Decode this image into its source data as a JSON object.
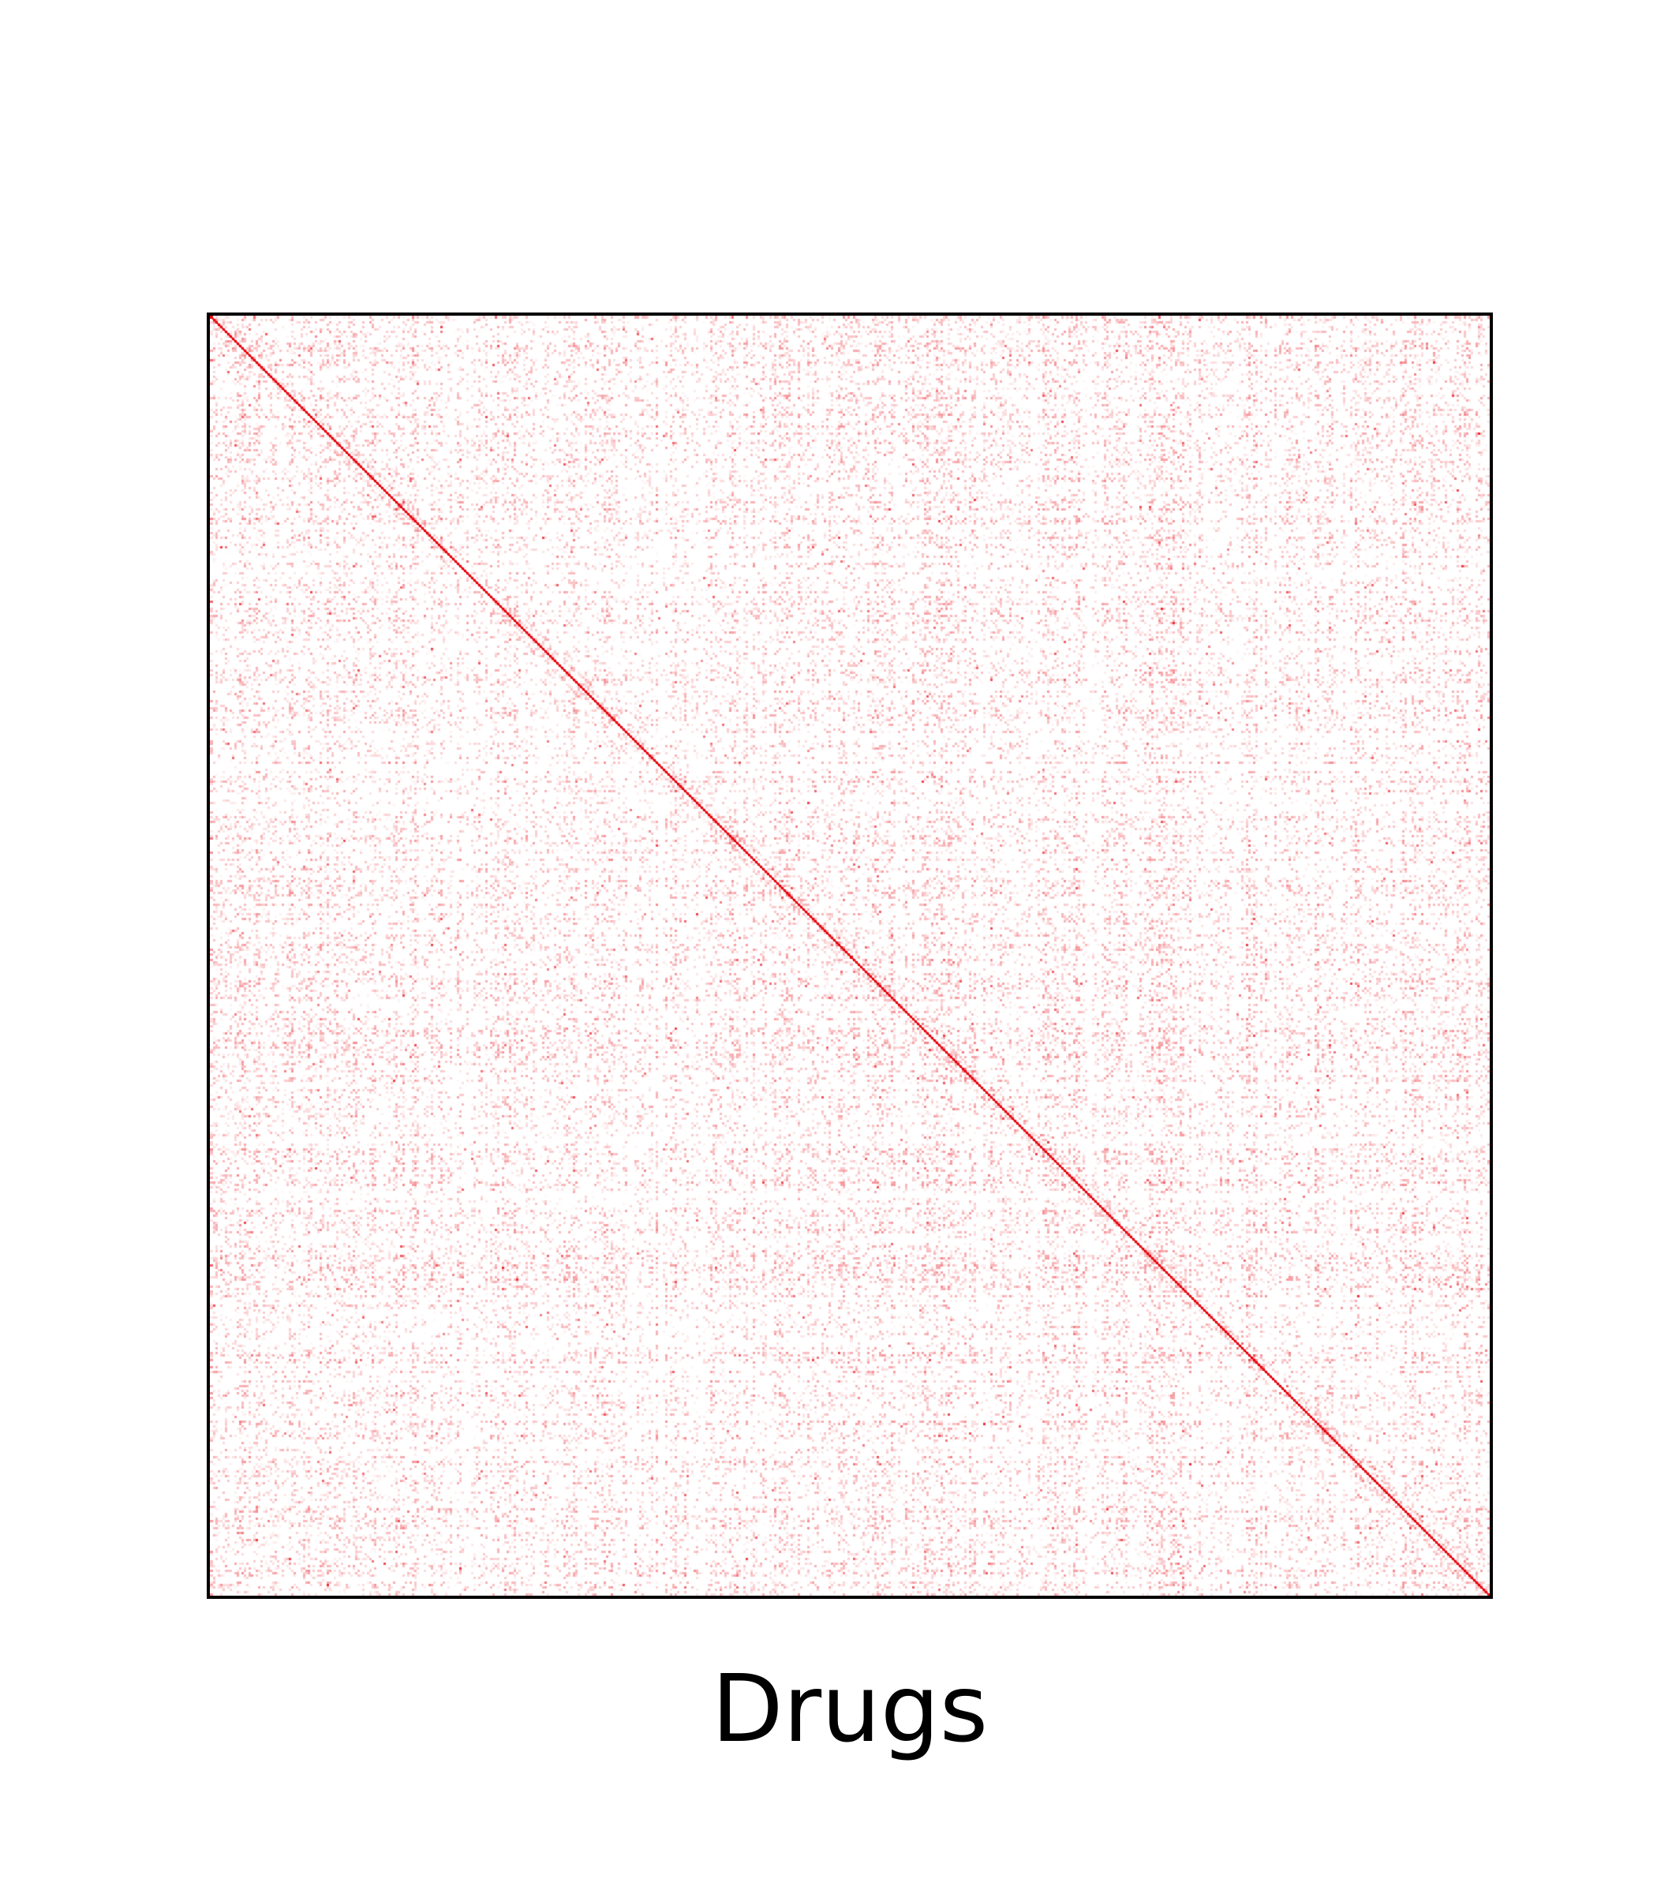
{
  "chart_data": {
    "type": "heatmap",
    "title": "",
    "xlabel": "Drugs",
    "ylabel": "",
    "description_values": {
      "diagonal_value": 1.0,
      "off_diagonal_typical_range": [
        0.0,
        0.35
      ],
      "min": 0.0,
      "max": 1.0
    },
    "colormap": {
      "low": "#ffffff",
      "high": "#e8000b"
    },
    "symmetric": true,
    "grid": false,
    "ticks": false
  }
}
